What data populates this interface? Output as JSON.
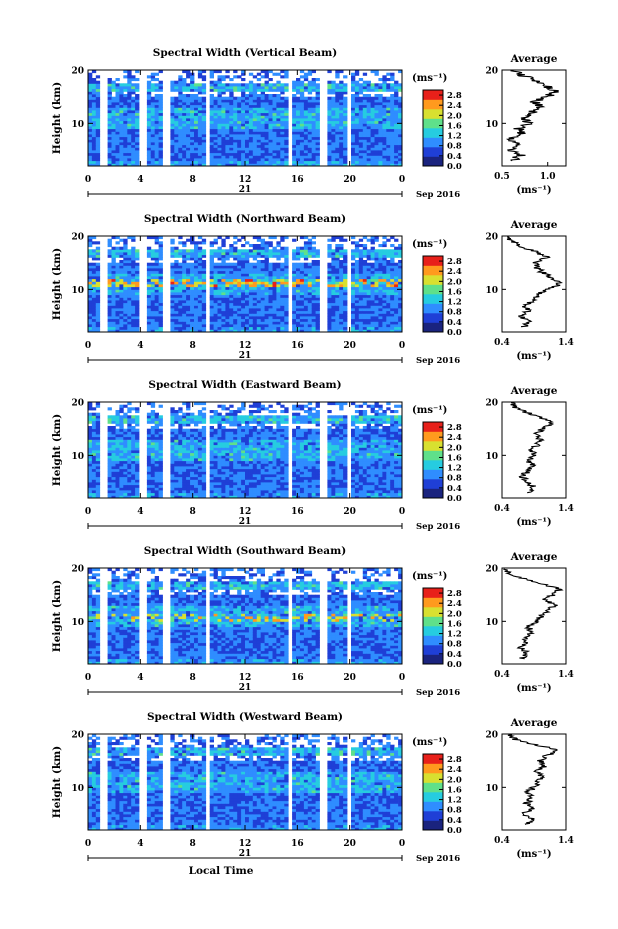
{
  "figure": {
    "xlabel": "Local Time",
    "date_label": "Sep 2016",
    "day_label": "21",
    "colorbar_unit": "(ms⁻¹)",
    "profile_title": "Average",
    "profile_xlabel": "(ms⁻¹)"
  },
  "chart_data": [
    {
      "type": "heatmap",
      "title": "Spectral Width (Vertical Beam)",
      "ylabel": "Height (km)",
      "xlim": [
        0,
        24
      ],
      "ylim": [
        2,
        20
      ],
      "xticks": [
        "0",
        "4",
        "8",
        "12",
        "16",
        "20",
        "0"
      ],
      "yticks": [
        "10",
        "20"
      ],
      "colorbar": {
        "ticks": [
          "0.0",
          "0.4",
          "0.8",
          "1.2",
          "1.6",
          "2.0",
          "2.4",
          "2.8"
        ],
        "range": [
          0,
          3.0
        ],
        "colors": [
          "#1a237e",
          "#1f3fd6",
          "#2f8dff",
          "#26cce0",
          "#5fe08a",
          "#d8e030",
          "#ff9a1e",
          "#e8201a"
        ]
      },
      "gaps_hours": [
        [
          1.0,
          1.4
        ],
        [
          4.0,
          4.5
        ],
        [
          5.8,
          6.3
        ],
        [
          8.9,
          9.3
        ],
        [
          15.2,
          15.7
        ],
        [
          17.8,
          18.2
        ],
        [
          19.8,
          20.2
        ]
      ],
      "profile": {
        "xlim": [
          0.5,
          1.2
        ],
        "xticks": [
          "0.5",
          "1.0"
        ],
        "heights": [
          3,
          4,
          5,
          6,
          7,
          8,
          9,
          10,
          11,
          12,
          13,
          14,
          15,
          16,
          17,
          18,
          19,
          20
        ],
        "values": [
          0.62,
          0.7,
          0.58,
          0.66,
          0.6,
          0.72,
          0.68,
          0.78,
          0.74,
          0.82,
          0.92,
          0.86,
          1.0,
          1.08,
          0.98,
          0.88,
          0.72,
          0.62
        ]
      }
    },
    {
      "type": "heatmap",
      "title": "Spectral Width (Northward Beam)",
      "ylabel": "Height (km)",
      "xlim": [
        0,
        24
      ],
      "ylim": [
        2,
        20
      ],
      "xticks": [
        "0",
        "4",
        "8",
        "12",
        "16",
        "20",
        "0"
      ],
      "yticks": [
        "10",
        "20"
      ],
      "colorbar": {
        "ticks": [
          "0.0",
          "0.4",
          "0.8",
          "1.2",
          "1.6",
          "2.0",
          "2.4",
          "2.8"
        ],
        "range": [
          0,
          3.0
        ],
        "colors": [
          "#1a237e",
          "#1f3fd6",
          "#2f8dff",
          "#26cce0",
          "#5fe08a",
          "#d8e030",
          "#ff9a1e",
          "#e8201a"
        ]
      },
      "gaps_hours": [
        [
          1.0,
          1.4
        ],
        [
          4.0,
          4.5
        ],
        [
          5.8,
          6.3
        ],
        [
          8.9,
          9.3
        ],
        [
          15.2,
          15.7
        ],
        [
          17.8,
          18.2
        ],
        [
          19.8,
          20.2
        ]
      ],
      "profile": {
        "xlim": [
          0.4,
          1.4
        ],
        "xticks": [
          "0.4",
          "1.4"
        ],
        "heights": [
          3,
          4,
          5,
          6,
          7,
          8,
          9,
          10,
          11,
          12,
          13,
          14,
          15,
          16,
          17,
          18,
          19,
          20
        ],
        "values": [
          0.75,
          0.82,
          0.7,
          0.8,
          0.74,
          0.9,
          0.96,
          1.1,
          1.3,
          1.22,
          1.05,
          0.95,
          0.9,
          1.1,
          0.95,
          0.7,
          0.55,
          0.5
        ]
      }
    },
    {
      "type": "heatmap",
      "title": "Spectral Width (Eastward Beam)",
      "ylabel": "Height (km)",
      "xlim": [
        0,
        24
      ],
      "ylim": [
        2,
        20
      ],
      "xticks": [
        "0",
        "4",
        "8",
        "12",
        "16",
        "20",
        "0"
      ],
      "yticks": [
        "10",
        "20"
      ],
      "colorbar": {
        "ticks": [
          "0.0",
          "0.4",
          "0.8",
          "1.2",
          "1.6",
          "2.0",
          "2.4",
          "2.8"
        ],
        "range": [
          0,
          3.0
        ],
        "colors": [
          "#1a237e",
          "#1f3fd6",
          "#2f8dff",
          "#26cce0",
          "#5fe08a",
          "#d8e030",
          "#ff9a1e",
          "#e8201a"
        ]
      },
      "gaps_hours": [
        [
          1.0,
          1.4
        ],
        [
          4.0,
          4.5
        ],
        [
          5.8,
          6.3
        ],
        [
          8.9,
          9.3
        ],
        [
          15.2,
          15.7
        ],
        [
          17.8,
          18.2
        ],
        [
          19.8,
          20.2
        ]
      ],
      "profile": {
        "xlim": [
          0.4,
          1.4
        ],
        "xticks": [
          "0.4",
          "1.4"
        ],
        "heights": [
          3,
          4,
          5,
          6,
          7,
          8,
          9,
          10,
          11,
          12,
          13,
          14,
          15,
          16,
          17,
          18,
          19,
          20
        ],
        "values": [
          0.8,
          0.9,
          0.78,
          0.72,
          0.8,
          0.88,
          0.82,
          0.92,
          0.86,
          0.95,
          1.0,
          0.92,
          1.05,
          1.2,
          1.02,
          0.8,
          0.6,
          0.55
        ]
      }
    },
    {
      "type": "heatmap",
      "title": "Spectral Width (Southward Beam)",
      "ylabel": "Height (km)",
      "xlim": [
        0,
        24
      ],
      "ylim": [
        2,
        20
      ],
      "xticks": [
        "0",
        "4",
        "8",
        "12",
        "16",
        "20",
        "0"
      ],
      "yticks": [
        "10",
        "20"
      ],
      "colorbar": {
        "ticks": [
          "0.0",
          "0.4",
          "0.8",
          "1.2",
          "1.6",
          "2.0",
          "2.4",
          "2.8"
        ],
        "range": [
          0,
          3.0
        ],
        "colors": [
          "#1a237e",
          "#1f3fd6",
          "#2f8dff",
          "#26cce0",
          "#5fe08a",
          "#d8e030",
          "#ff9a1e",
          "#e8201a"
        ]
      },
      "gaps_hours": [
        [
          1.0,
          1.4
        ],
        [
          4.0,
          4.5
        ],
        [
          5.8,
          6.3
        ],
        [
          8.9,
          9.3
        ],
        [
          15.2,
          15.7
        ],
        [
          17.8,
          18.2
        ],
        [
          19.8,
          20.2
        ]
      ],
      "profile": {
        "xlim": [
          0.4,
          1.4
        ],
        "xticks": [
          "0.4",
          "1.4"
        ],
        "heights": [
          3,
          4,
          5,
          6,
          7,
          8,
          9,
          10,
          11,
          12,
          13,
          14,
          15,
          16,
          17,
          18,
          19,
          20
        ],
        "values": [
          0.72,
          0.8,
          0.7,
          0.78,
          0.74,
          0.86,
          0.8,
          0.95,
          1.0,
          1.1,
          1.25,
          1.05,
          1.2,
          1.3,
          1.05,
          0.75,
          0.5,
          0.45
        ]
      }
    },
    {
      "type": "heatmap",
      "title": "Spectral Width (Westward Beam)",
      "ylabel": "Height (km)",
      "xlim": [
        0,
        24
      ],
      "ylim": [
        2,
        20
      ],
      "xticks": [
        "0",
        "4",
        "8",
        "12",
        "16",
        "20",
        "0"
      ],
      "yticks": [
        "10",
        "20"
      ],
      "colorbar": {
        "ticks": [
          "0.0",
          "0.4",
          "0.8",
          "1.2",
          "1.6",
          "2.0",
          "2.4",
          "2.8"
        ],
        "range": [
          0,
          3.0
        ],
        "colors": [
          "#1a237e",
          "#1f3fd6",
          "#2f8dff",
          "#26cce0",
          "#5fe08a",
          "#d8e030",
          "#ff9a1e",
          "#e8201a"
        ]
      },
      "gaps_hours": [
        [
          1.0,
          1.4
        ],
        [
          4.0,
          4.5
        ],
        [
          5.8,
          6.3
        ],
        [
          8.9,
          9.3
        ],
        [
          15.2,
          15.7
        ],
        [
          17.8,
          18.2
        ],
        [
          19.8,
          20.2
        ]
      ],
      "profile": {
        "xlim": [
          0.4,
          1.4
        ],
        "xticks": [
          "0.4",
          "1.4"
        ],
        "heights": [
          3,
          4,
          5,
          6,
          7,
          8,
          9,
          10,
          11,
          12,
          13,
          14,
          15,
          16,
          17,
          18,
          19,
          20
        ],
        "values": [
          0.8,
          0.9,
          0.75,
          0.85,
          0.78,
          0.86,
          0.8,
          0.9,
          0.95,
          1.0,
          0.95,
          1.05,
          1.0,
          1.1,
          1.3,
          0.9,
          0.6,
          0.5
        ]
      }
    }
  ]
}
